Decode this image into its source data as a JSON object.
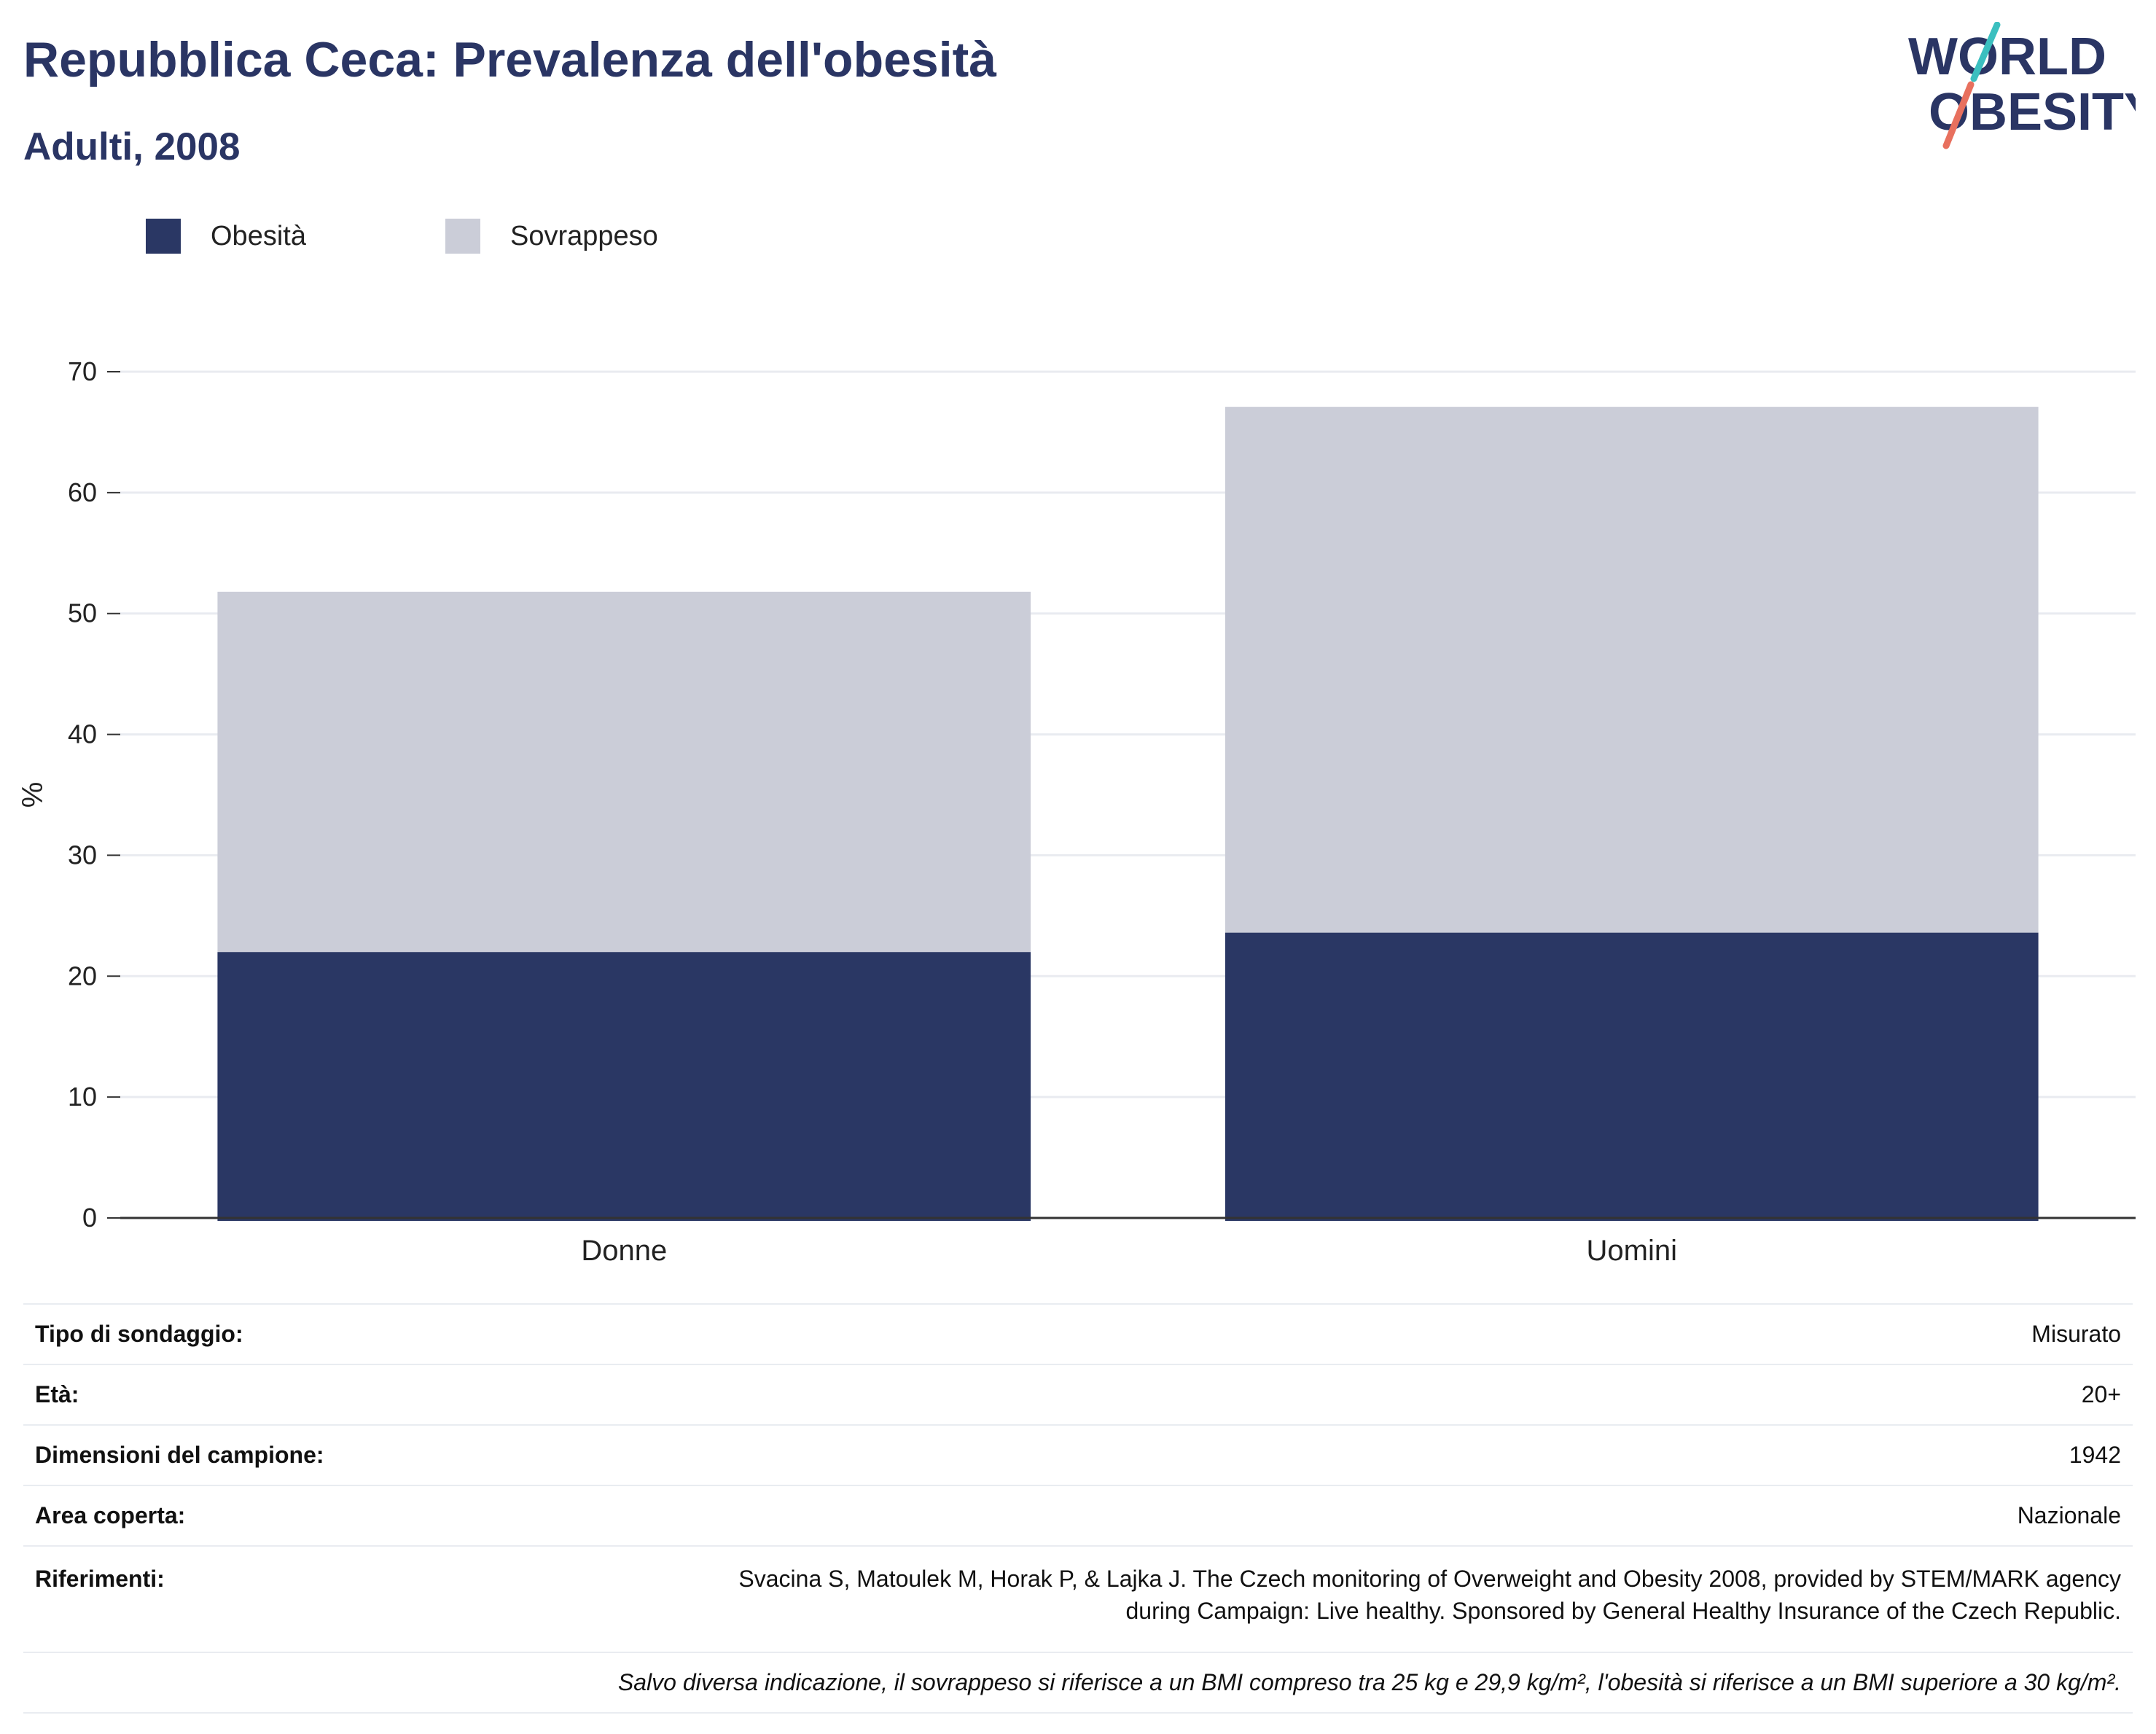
{
  "title": "Repubblica Ceca: Prevalenza dell'obesità",
  "subtitle": "Adulti, 2008",
  "logo": {
    "line1": "WORLD",
    "line2": "OBESITY"
  },
  "legend": [
    {
      "label": "Obesità",
      "color": "#2a3764"
    },
    {
      "label": "Sovrappeso",
      "color": "#cbcdd8"
    }
  ],
  "chart_data": {
    "type": "bar",
    "stacked": true,
    "categories": [
      "Donne",
      "Uomini"
    ],
    "series": [
      {
        "name": "Obesità",
        "values": [
          22.0,
          23.6
        ],
        "color": "#2a3764"
      },
      {
        "name": "Sovrappeso",
        "values": [
          29.8,
          43.5
        ],
        "color": "#cbcdd8"
      }
    ],
    "xlabel": "",
    "ylabel": "%",
    "ylim": [
      0,
      70
    ],
    "yticks": [
      0,
      10,
      20,
      30,
      40,
      50,
      60,
      70
    ],
    "grid": true,
    "legend_position": "top-left"
  },
  "info": {
    "rows": [
      {
        "key": "Tipo di sondaggio:",
        "value": "Misurato"
      },
      {
        "key": "Età:",
        "value": "20+"
      },
      {
        "key": "Dimensioni del campione:",
        "value": "1942"
      },
      {
        "key": "Area coperta:",
        "value": "Nazionale"
      }
    ],
    "references_key": "Riferimenti:",
    "references_line1": "Svacina S, Matoulek M, Horak P, & Lajka J. The Czech monitoring of Overweight and Obesity 2008, provided by STEM/MARK agency",
    "references_line2": "during Campaign: Live healthy. Sponsored by General Healthy Insurance of the Czech Republic.",
    "note": "Salvo diversa indicazione, il sovrappeso si riferisce a un BMI compreso tra 25 kg e 29,9 kg/m², l'obesità si riferisce a un BMI superiore a 30 kg/m²."
  }
}
